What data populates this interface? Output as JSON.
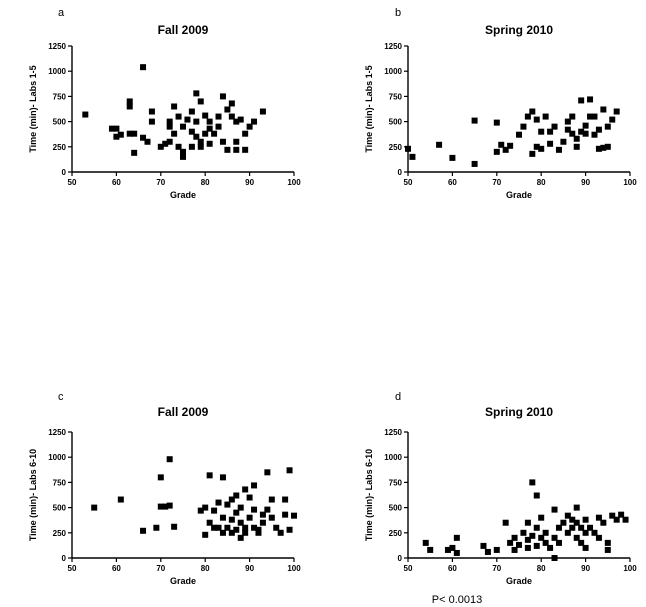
{
  "chart_data": [
    {
      "id": "a",
      "panel_label": "a",
      "type": "scatter",
      "title": "Fall 2009",
      "xlabel": "Grade",
      "ylabel": "Time (min)- Labs 1-5",
      "xlim": [
        50,
        100
      ],
      "ylim": [
        0,
        1250
      ],
      "xticks": [
        50,
        60,
        70,
        80,
        90,
        100
      ],
      "yticks": [
        0,
        250,
        500,
        750,
        1000,
        1250
      ],
      "grid": false,
      "points": [
        [
          53,
          570
        ],
        [
          59,
          430
        ],
        [
          60,
          430
        ],
        [
          60,
          350
        ],
        [
          61,
          370
        ],
        [
          63,
          700
        ],
        [
          63,
          650
        ],
        [
          63,
          380
        ],
        [
          64,
          380
        ],
        [
          64,
          190
        ],
        [
          66,
          1040
        ],
        [
          66,
          340
        ],
        [
          67,
          300
        ],
        [
          68,
          600
        ],
        [
          68,
          500
        ],
        [
          70,
          250
        ],
        [
          71,
          280
        ],
        [
          72,
          450
        ],
        [
          72,
          500
        ],
        [
          72,
          300
        ],
        [
          73,
          650
        ],
        [
          73,
          380
        ],
        [
          74,
          550
        ],
        [
          74,
          250
        ],
        [
          75,
          450
        ],
        [
          75,
          200
        ],
        [
          75,
          150
        ],
        [
          76,
          520
        ],
        [
          77,
          400
        ],
        [
          77,
          250
        ],
        [
          77,
          600
        ],
        [
          78,
          780
        ],
        [
          78,
          500
        ],
        [
          78,
          350
        ],
        [
          79,
          700
        ],
        [
          79,
          300
        ],
        [
          79,
          250
        ],
        [
          80,
          380
        ],
        [
          80,
          560
        ],
        [
          81,
          430
        ],
        [
          81,
          500
        ],
        [
          81,
          280
        ],
        [
          82,
          380
        ],
        [
          83,
          550
        ],
        [
          83,
          450
        ],
        [
          84,
          750
        ],
        [
          84,
          300
        ],
        [
          85,
          620
        ],
        [
          85,
          220
        ],
        [
          86,
          680
        ],
        [
          86,
          550
        ],
        [
          87,
          500
        ],
        [
          87,
          300
        ],
        [
          87,
          220
        ],
        [
          88,
          520
        ],
        [
          89,
          380
        ],
        [
          89,
          220
        ],
        [
          90,
          450
        ],
        [
          91,
          500
        ],
        [
          93,
          600
        ]
      ]
    },
    {
      "id": "b",
      "panel_label": "b",
      "type": "scatter",
      "title": "Spring 2010",
      "xlabel": "Grade",
      "ylabel": "Time (min)- Labs 1-5",
      "xlim": [
        50,
        100
      ],
      "ylim": [
        0,
        1250
      ],
      "xticks": [
        50,
        60,
        70,
        80,
        90,
        100
      ],
      "yticks": [
        0,
        250,
        500,
        750,
        1000,
        1250
      ],
      "grid": false,
      "points": [
        [
          50,
          230
        ],
        [
          51,
          150
        ],
        [
          57,
          270
        ],
        [
          60,
          140
        ],
        [
          65,
          510
        ],
        [
          65,
          80
        ],
        [
          70,
          200
        ],
        [
          70,
          490
        ],
        [
          71,
          270
        ],
        [
          72,
          220
        ],
        [
          73,
          260
        ],
        [
          75,
          370
        ],
        [
          76,
          450
        ],
        [
          77,
          550
        ],
        [
          78,
          600
        ],
        [
          78,
          180
        ],
        [
          79,
          250
        ],
        [
          79,
          520
        ],
        [
          80,
          400
        ],
        [
          80,
          230
        ],
        [
          81,
          550
        ],
        [
          82,
          280
        ],
        [
          82,
          400
        ],
        [
          83,
          450
        ],
        [
          84,
          220
        ],
        [
          85,
          300
        ],
        [
          86,
          500
        ],
        [
          86,
          420
        ],
        [
          87,
          550
        ],
        [
          87,
          380
        ],
        [
          88,
          330
        ],
        [
          88,
          250
        ],
        [
          89,
          710
        ],
        [
          89,
          400
        ],
        [
          90,
          460
        ],
        [
          90,
          380
        ],
        [
          91,
          720
        ],
        [
          91,
          550
        ],
        [
          92,
          370
        ],
        [
          92,
          550
        ],
        [
          93,
          420
        ],
        [
          93,
          230
        ],
        [
          94,
          620
        ],
        [
          94,
          240
        ],
        [
          95,
          450
        ],
        [
          95,
          250
        ],
        [
          96,
          520
        ],
        [
          97,
          600
        ]
      ]
    },
    {
      "id": "c",
      "panel_label": "c",
      "type": "scatter",
      "title": "Fall 2009",
      "xlabel": "Grade",
      "ylabel": "Time (min)- Labs 6-10",
      "xlim": [
        50,
        100
      ],
      "ylim": [
        0,
        1250
      ],
      "xticks": [
        50,
        60,
        70,
        80,
        90,
        100
      ],
      "yticks": [
        0,
        250,
        500,
        750,
        1000,
        1250
      ],
      "grid": false,
      "points": [
        [
          55,
          500
        ],
        [
          61,
          580
        ],
        [
          66,
          270
        ],
        [
          69,
          300
        ],
        [
          70,
          800
        ],
        [
          70,
          510
        ],
        [
          71,
          510
        ],
        [
          72,
          980
        ],
        [
          72,
          520
        ],
        [
          73,
          310
        ],
        [
          79,
          470
        ],
        [
          80,
          500
        ],
        [
          80,
          230
        ],
        [
          81,
          820
        ],
        [
          81,
          350
        ],
        [
          82,
          300
        ],
        [
          82,
          470
        ],
        [
          83,
          300
        ],
        [
          83,
          550
        ],
        [
          84,
          800
        ],
        [
          84,
          250
        ],
        [
          84,
          400
        ],
        [
          85,
          530
        ],
        [
          85,
          300
        ],
        [
          86,
          580
        ],
        [
          86,
          380
        ],
        [
          86,
          250
        ],
        [
          87,
          620
        ],
        [
          87,
          450
        ],
        [
          87,
          280
        ],
        [
          88,
          350
        ],
        [
          88,
          200
        ],
        [
          88,
          500
        ],
        [
          89,
          680
        ],
        [
          89,
          300
        ],
        [
          89,
          250
        ],
        [
          90,
          400
        ],
        [
          90,
          600
        ],
        [
          91,
          720
        ],
        [
          91,
          480
        ],
        [
          91,
          300
        ],
        [
          92,
          280
        ],
        [
          92,
          250
        ],
        [
          93,
          430
        ],
        [
          93,
          350
        ],
        [
          94,
          850
        ],
        [
          94,
          480
        ],
        [
          95,
          400
        ],
        [
          95,
          580
        ],
        [
          96,
          300
        ],
        [
          97,
          250
        ],
        [
          98,
          580
        ],
        [
          98,
          430
        ],
        [
          99,
          870
        ],
        [
          99,
          280
        ],
        [
          100,
          420
        ]
      ]
    },
    {
      "id": "d",
      "panel_label": "d",
      "type": "scatter",
      "title": "Spring 2010",
      "xlabel": "Grade",
      "ylabel": "Time (min)- Labs 6-10",
      "xlim": [
        50,
        100
      ],
      "ylim": [
        0,
        1250
      ],
      "xticks": [
        50,
        60,
        70,
        80,
        90,
        100
      ],
      "yticks": [
        0,
        250,
        500,
        750,
        1000,
        1250
      ],
      "grid": false,
      "annotation": "P< 0.0013",
      "points": [
        [
          54,
          150
        ],
        [
          55,
          80
        ],
        [
          59,
          80
        ],
        [
          60,
          100
        ],
        [
          61,
          200
        ],
        [
          61,
          50
        ],
        [
          67,
          120
        ],
        [
          68,
          60
        ],
        [
          70,
          80
        ],
        [
          72,
          350
        ],
        [
          73,
          150
        ],
        [
          74,
          200
        ],
        [
          74,
          80
        ],
        [
          75,
          130
        ],
        [
          76,
          250
        ],
        [
          77,
          180
        ],
        [
          77,
          350
        ],
        [
          77,
          100
        ],
        [
          78,
          750
        ],
        [
          78,
          220
        ],
        [
          79,
          620
        ],
        [
          79,
          300
        ],
        [
          79,
          120
        ],
        [
          80,
          200
        ],
        [
          80,
          400
        ],
        [
          81,
          150
        ],
        [
          81,
          250
        ],
        [
          82,
          100
        ],
        [
          83,
          480
        ],
        [
          83,
          200
        ],
        [
          83,
          0
        ],
        [
          84,
          300
        ],
        [
          84,
          150
        ],
        [
          85,
          350
        ],
        [
          86,
          420
        ],
        [
          86,
          250
        ],
        [
          87,
          380
        ],
        [
          87,
          300
        ],
        [
          88,
          500
        ],
        [
          88,
          350
        ],
        [
          88,
          200
        ],
        [
          89,
          300
        ],
        [
          89,
          150
        ],
        [
          90,
          380
        ],
        [
          90,
          250
        ],
        [
          90,
          100
        ],
        [
          91,
          300
        ],
        [
          92,
          250
        ],
        [
          93,
          400
        ],
        [
          93,
          200
        ],
        [
          94,
          350
        ],
        [
          95,
          150
        ],
        [
          95,
          80
        ],
        [
          96,
          420
        ],
        [
          97,
          380
        ],
        [
          98,
          430
        ],
        [
          99,
          380
        ]
      ]
    }
  ]
}
